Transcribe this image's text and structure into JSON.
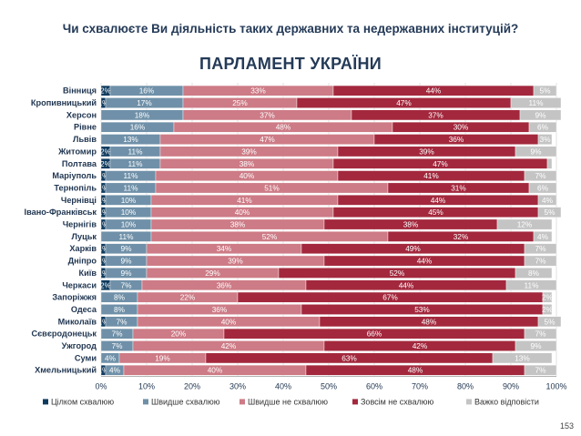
{
  "question": "Чи схвалюєте Ви діяльність таких державних та недержавних інституцій?",
  "chart_title": "ПАРЛАМЕНТ УКРАЇНИ",
  "page_number": "153",
  "colors": {
    "fully_approve": "#0f3b5f",
    "rather_approve": "#6f90a8",
    "rather_disapprove": "#cd7b86",
    "fully_disapprove": "#a3283d",
    "hard_to_say": "#c4c4c4"
  },
  "chart_data": {
    "type": "bar",
    "orientation": "horizontal-stacked-100",
    "categories": [
      "Вінниця",
      "Кропивницький",
      "Херсон",
      "Рівне",
      "Львів",
      "Житомир",
      "Полтава",
      "Маріуполь",
      "Тернопіль",
      "Чернівці",
      "Івано-Франківськ",
      "Чернігів",
      "Луцьк",
      "Харків",
      "Дніпро",
      "Київ",
      "Черкаси",
      "Запоріжжя",
      "Одеса",
      "Миколаїв",
      "Сєвєродонецьк",
      "Ужгород",
      "Суми",
      "Хмельницький"
    ],
    "series": [
      {
        "name": "Цілком схвалюю",
        "color_key": "fully_approve",
        "values": [
          2,
          1,
          0,
          0,
          0,
          2,
          2,
          1,
          1,
          1,
          1,
          1,
          0,
          1,
          1,
          1,
          2,
          0,
          0,
          1,
          0,
          0,
          0,
          1
        ],
        "labels": [
          "2%",
          "1%",
          "",
          "",
          "",
          "2%",
          "2%",
          "1%",
          "1%",
          "1%",
          "1%",
          "1%",
          "",
          "1%",
          "1%",
          "1%",
          "2%",
          "",
          "",
          "1%",
          "",
          "",
          "",
          "1%"
        ]
      },
      {
        "name": "Швидше схвалюю",
        "color_key": "rather_approve",
        "values": [
          16,
          17,
          18,
          16,
          13,
          11,
          11,
          11,
          11,
          10,
          10,
          10,
          11,
          9,
          9,
          9,
          7,
          8,
          8,
          7,
          7,
          7,
          4,
          4
        ],
        "labels": [
          "16%",
          "17%",
          "18%",
          "16%",
          "13%",
          "11%",
          "11%",
          "11%",
          "11%",
          "10%",
          "10%",
          "10%",
          "11%",
          "9%",
          "9%",
          "9%",
          "7%",
          "8%",
          "8%",
          "7%",
          "7%",
          "7%",
          "4%",
          "4%"
        ]
      },
      {
        "name": "Швидше не схвалюю",
        "color_key": "rather_disapprove",
        "values": [
          33,
          25,
          37,
          48,
          47,
          39,
          38,
          40,
          51,
          41,
          40,
          38,
          52,
          34,
          39,
          29,
          36,
          22,
          36,
          40,
          20,
          42,
          19,
          40
        ],
        "labels": [
          "33%",
          "25%",
          "37%",
          "48%",
          "47%",
          "39%",
          "38%",
          "40%",
          "51%",
          "41%",
          "40%",
          "38%",
          "52%",
          "34%",
          "39%",
          "29%",
          "36%",
          "22%",
          "36%",
          "40%",
          "20%",
          "42%",
          "19%",
          "40%"
        ]
      },
      {
        "name": "Зовсім не схвалюю",
        "color_key": "fully_disapprove",
        "values": [
          44,
          47,
          37,
          30,
          36,
          39,
          47,
          41,
          31,
          44,
          45,
          38,
          32,
          49,
          44,
          52,
          44,
          67,
          53,
          48,
          66,
          42,
          63,
          48
        ],
        "labels": [
          "44%",
          "47%",
          "37%",
          "30%",
          "36%",
          "39%",
          "47%",
          "41%",
          "31%",
          "44%",
          "45%",
          "38%",
          "32%",
          "49%",
          "44%",
          "52%",
          "44%",
          "67%",
          "53%",
          "48%",
          "66%",
          "42%",
          "63%",
          "48%"
        ]
      },
      {
        "name": "Важко відповісти",
        "color_key": "hard_to_say",
        "values": [
          5,
          11,
          9,
          6,
          3,
          9,
          1,
          7,
          6,
          4,
          5,
          12,
          4,
          7,
          7,
          8,
          11,
          2,
          2,
          5,
          7,
          9,
          13,
          7
        ],
        "labels": [
          "5%",
          "11%",
          "9%",
          "6%",
          "3%",
          "9%",
          "",
          "7%",
          "6%",
          "4%",
          "5%",
          "12%",
          "4%",
          "7%",
          "7%",
          "8%",
          "11%",
          "2%",
          "2%",
          "5%",
          "7%",
          "9%",
          "13%",
          "7%"
        ]
      }
    ],
    "xlim": [
      0,
      100
    ],
    "x_ticks": [
      "0%",
      "10%",
      "20%",
      "30%",
      "40%",
      "50%",
      "60%",
      "70%",
      "80%",
      "90%",
      "100%"
    ],
    "grid": true,
    "legend_position": "bottom"
  }
}
